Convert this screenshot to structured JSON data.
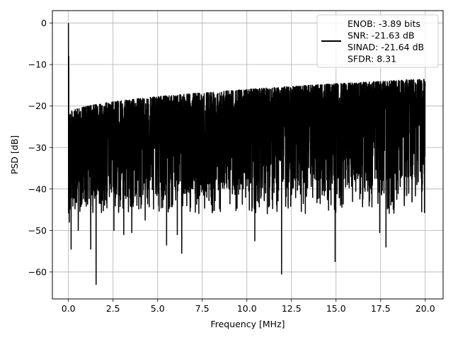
{
  "chart_data": {
    "type": "line",
    "title": "",
    "xlabel": "Frequency [MHz]",
    "ylabel": "PSD [dB]",
    "xlim": [
      -0.9,
      21.0
    ],
    "ylim": [
      -66.5,
      3.0
    ],
    "xticks": [
      0.0,
      2.5,
      5.0,
      7.5,
      10.0,
      12.5,
      15.0,
      17.5,
      20.0
    ],
    "xtick_labels": [
      "0.0",
      "2.5",
      "5.0",
      "7.5",
      "10.0",
      "12.5",
      "15.0",
      "17.5",
      "20.0"
    ],
    "yticks": [
      0,
      -10,
      -20,
      -30,
      -40,
      -50,
      -60
    ],
    "ytick_labels": [
      "0",
      "−10",
      "−20",
      "−30",
      "−40",
      "−50",
      "−60"
    ],
    "grid": true,
    "legend_position": "top-right",
    "series": [
      {
        "name": "ENOB: -3.89 bits\nSNR: -21.63 dB\nSINAD: -21.64 dB\nSFDR: 8.31",
        "color": "#000000",
        "x_range": [
          0.0,
          20.0
        ],
        "upper_envelope_start": -22.0,
        "upper_envelope_end": -13.5,
        "noise_floor_typical": -36.0,
        "peaks": [
          [
            0.0,
            0.0
          ],
          [
            0.02,
            -8.0
          ]
        ],
        "notable_minima": [
          [
            0.05,
            -48.0
          ],
          [
            0.15,
            -54.5
          ],
          [
            0.55,
            -50.0
          ],
          [
            1.25,
            -54.5
          ],
          [
            1.55,
            -63.0
          ],
          [
            2.55,
            -50.0
          ],
          [
            3.1,
            -51.0
          ],
          [
            3.55,
            -50.5
          ],
          [
            4.3,
            -47.5
          ],
          [
            5.5,
            -53.5
          ],
          [
            6.1,
            -51.0
          ],
          [
            6.35,
            -55.5
          ],
          [
            10.45,
            -52.5
          ],
          [
            11.95,
            -60.5
          ],
          [
            14.95,
            -57.5
          ],
          [
            17.45,
            -50.5
          ],
          [
            17.8,
            -54.0
          ],
          [
            19.8,
            -45.5
          ]
        ]
      }
    ],
    "legend": [
      {
        "label_lines": [
          "ENOB: -3.89 bits",
          "SNR: -21.63 dB",
          "SINAD: -21.64 dB",
          "SFDR: 8.31"
        ],
        "color": "#000000"
      }
    ]
  }
}
